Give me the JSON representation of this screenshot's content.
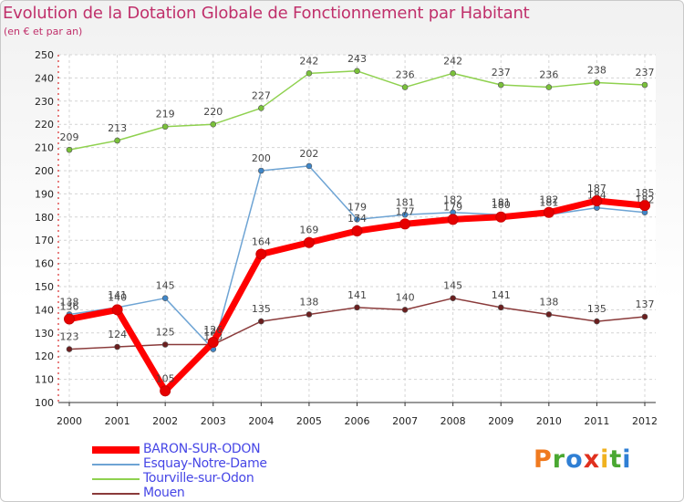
{
  "header": {
    "title": "Evolution de la Dotation Globale de Fonctionnement par Habitant",
    "subtitle": "(en € et par an)"
  },
  "logo": {
    "text": "Proxiti",
    "letters": [
      "P",
      "r",
      "o",
      "x",
      "i",
      "t",
      "i"
    ]
  },
  "chart_data": {
    "type": "line",
    "title": "Evolution de la Dotation Globale de Fonctionnement par Habitant",
    "subtitle": "(en € et par an)",
    "x": [
      2000,
      2001,
      2002,
      2003,
      2004,
      2005,
      2006,
      2007,
      2008,
      2009,
      2010,
      2011,
      2012
    ],
    "ylim": [
      100,
      250
    ],
    "yticks": [
      100,
      110,
      120,
      130,
      140,
      150,
      160,
      170,
      180,
      190,
      200,
      210,
      220,
      230,
      240,
      250
    ],
    "grid": true,
    "legend_position": "bottom-left",
    "series": [
      {
        "name": "Tourville-sur-Odon",
        "color": "#8fd14f",
        "marker": "#7ac13a",
        "values": [
          209,
          213,
          219,
          220,
          227,
          242,
          243,
          236,
          242,
          237,
          236,
          238,
          237
        ]
      },
      {
        "name": "Esquay-Notre-Dame",
        "color": "#6ea4d4",
        "marker": "#3f86c8",
        "values": [
          138,
          141,
          145,
          123,
          200,
          202,
          179,
          181,
          182,
          181,
          181,
          184,
          182
        ]
      },
      {
        "name": "Mouen",
        "color": "#8a3a3a",
        "marker": "#6b1f1f",
        "values": [
          123,
          124,
          125,
          125,
          135,
          138,
          141,
          140,
          145,
          141,
          138,
          135,
          137
        ]
      },
      {
        "name": "BARON-SUR-ODON",
        "color": "#ff0000",
        "marker": "#e60000",
        "values": [
          136,
          140,
          105,
          126,
          164,
          169,
          174,
          177,
          179,
          180,
          182,
          187,
          185
        ]
      }
    ],
    "legend_order": [
      "BARON-SUR-ODON",
      "Esquay-Notre-Dame",
      "Tourville-sur-Odon",
      "Mouen"
    ],
    "legend_text_color": "#4646e6"
  }
}
